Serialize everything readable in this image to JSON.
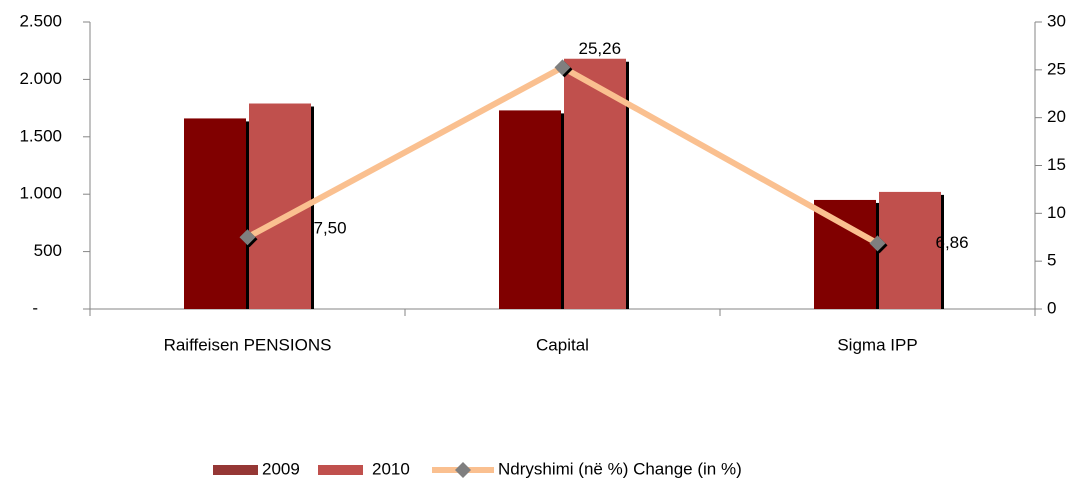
{
  "chart_data": {
    "type": "bar",
    "categories": [
      "Raiffeisen PENSIONS",
      "Capital",
      "Sigma IPP"
    ],
    "series": [
      {
        "name": "2009",
        "color": "#800000",
        "legend_color": "#953735",
        "values": [
          1660,
          1730,
          950
        ]
      },
      {
        "name": "2010",
        "color": "#c0504d",
        "values": [
          1790,
          2180,
          1020
        ]
      },
      {
        "name": "Ndryshimi (në %) Change (in %)",
        "type": "line",
        "axis": "y2",
        "color": "#fac090",
        "marker_color": "#7f7f7f",
        "values": [
          7.5,
          25.26,
          6.86
        ],
        "value_labels": [
          "7,50",
          "25,26",
          "6,86"
        ]
      }
    ],
    "ylim": [
      0,
      2500
    ],
    "yticks": [
      {
        "value": 0,
        "label": "-"
      },
      500,
      {
        "value": 1000,
        "label": "1.000"
      },
      {
        "value": 1500,
        "label": "1.500"
      },
      {
        "value": 2000,
        "label": "2.000"
      },
      {
        "value": 2500,
        "label": "2.500"
      }
    ],
    "y2lim": [
      0,
      30
    ],
    "y2ticks": [
      0,
      5,
      10,
      15,
      20,
      25,
      30
    ],
    "grid": false,
    "legend": "bottom"
  }
}
